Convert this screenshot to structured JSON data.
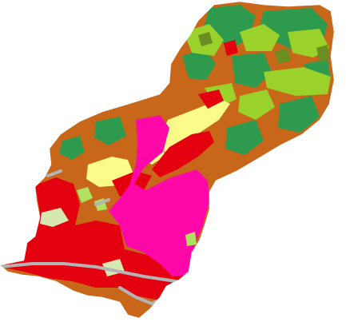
{
  "map": {
    "type": "land-use-choropleth",
    "labels_visible": false,
    "background": "#ffffff",
    "palette": {
      "agricultural-orange": "#c8661a",
      "forest-green": "#2e9a4e",
      "grassland-lime": "#9ad12a",
      "olive": "#6b8e23",
      "cultivated-yellow": "#fbfb8a",
      "urban-red": "#e3000f",
      "industrial-magenta": "#ff08a8",
      "light-green": "#b0e060",
      "road-gray": "#b4b4b4",
      "pale-green": "#d6e8b0"
    },
    "classes": [
      {
        "key": "agricultural-orange",
        "area_fraction": 0.3
      },
      {
        "key": "forest-green",
        "area_fraction": 0.16
      },
      {
        "key": "grassland-lime",
        "area_fraction": 0.08
      },
      {
        "key": "cultivated-yellow",
        "area_fraction": 0.05
      },
      {
        "key": "urban-red",
        "area_fraction": 0.22
      },
      {
        "key": "industrial-magenta",
        "area_fraction": 0.15
      },
      {
        "key": "road-gray",
        "area_fraction": 0.02
      },
      {
        "key": "pale-green",
        "area_fraction": 0.02
      }
    ]
  }
}
